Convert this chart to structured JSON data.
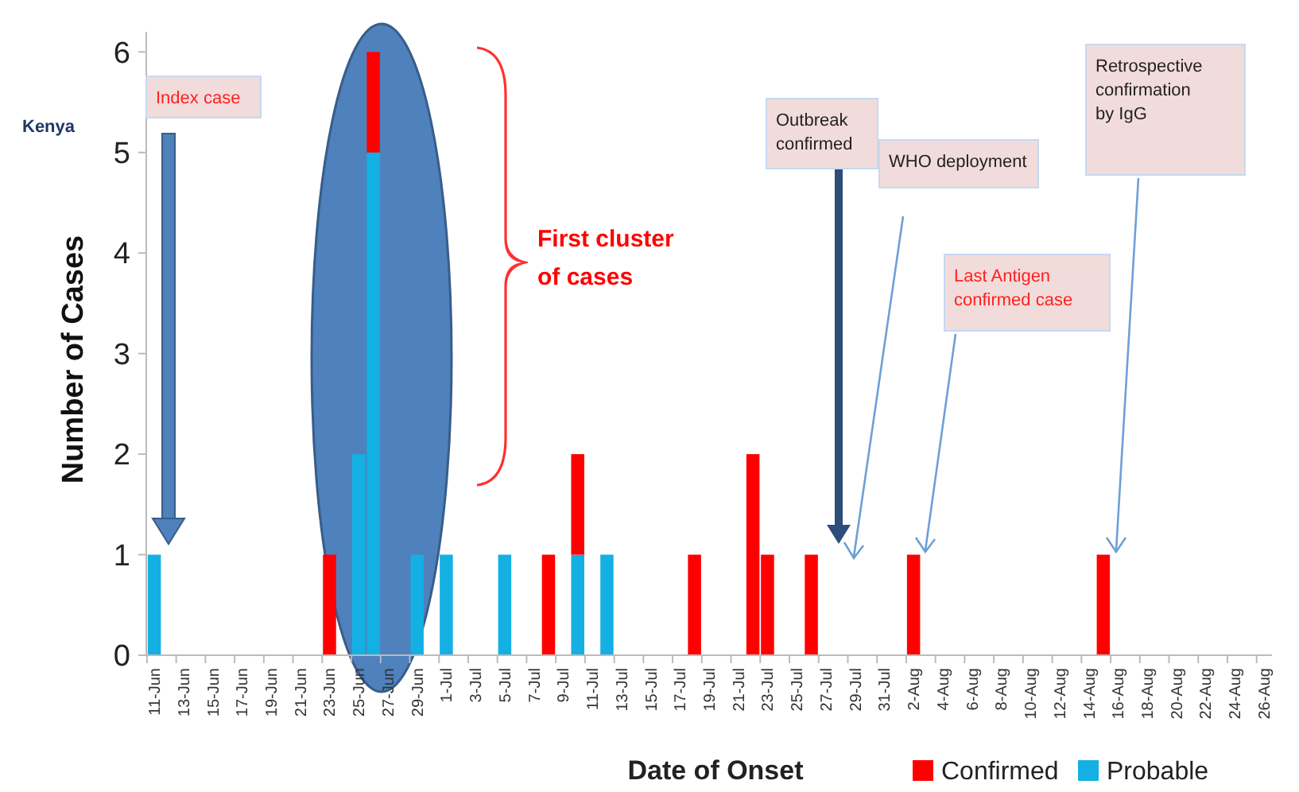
{
  "chart_data": {
    "type": "bar",
    "stacked": true,
    "xlabel": "Date of Onset",
    "ylabel": "Number of Cases",
    "categories": [
      "11-Jun",
      null,
      "13-Jun",
      null,
      "15-Jun",
      null,
      "17-Jun",
      null,
      "19-Jun",
      null,
      "21-Jun",
      null,
      "23-Jun",
      null,
      "25-Jun",
      null,
      "27-Jun",
      null,
      "29-Jun",
      null,
      "1-Jul",
      null,
      "3-Jul",
      null,
      "5-Jul",
      null,
      "7-Jul",
      null,
      "9-Jul",
      null,
      "11-Jul",
      null,
      "13-Jul",
      null,
      "15-Jul",
      null,
      "17-Jul",
      null,
      "19-Jul",
      null,
      "21-Jul",
      null,
      "23-Jul",
      null,
      "25-Jul",
      null,
      "27-Jul",
      null,
      "29-Jul",
      null,
      "31-Jul",
      null,
      "2-Aug",
      null,
      "4-Aug",
      null,
      "6-Aug",
      null,
      "8-Aug",
      null,
      "10-Aug",
      null,
      "12-Aug",
      null,
      "14-Aug",
      null,
      "16-Aug",
      null,
      "18-Aug",
      null,
      "20-Aug",
      null,
      "22-Aug",
      null,
      "24-Aug",
      null,
      "26-Aug"
    ],
    "series": [
      {
        "name": "Probable",
        "color": "#14b0e4",
        "values": [
          1,
          0,
          0,
          0,
          0,
          0,
          0,
          0,
          0,
          0,
          0,
          0,
          0,
          0,
          2,
          5,
          0,
          0,
          1,
          0,
          1,
          0,
          0,
          0,
          1,
          0,
          0,
          0,
          0,
          1,
          0,
          1,
          0,
          0,
          0,
          0,
          0,
          0,
          0,
          0,
          0,
          0,
          0,
          0,
          0,
          0,
          0,
          0,
          0,
          0,
          0,
          0,
          0,
          0,
          0,
          0,
          0,
          0,
          0,
          0,
          0,
          0,
          0,
          0,
          0,
          0,
          0,
          0,
          0,
          0,
          0,
          0,
          0,
          0,
          0,
          0,
          0
        ]
      },
      {
        "name": "Confirmed",
        "color": "#ff0000",
        "values": [
          0,
          0,
          0,
          0,
          0,
          0,
          0,
          0,
          0,
          0,
          0,
          0,
          1,
          0,
          0,
          1,
          0,
          0,
          0,
          0,
          0,
          0,
          0,
          0,
          0,
          0,
          0,
          1,
          0,
          1,
          0,
          0,
          0,
          0,
          0,
          0,
          0,
          1,
          0,
          0,
          0,
          2,
          1,
          0,
          0,
          1,
          0,
          0,
          0,
          0,
          0,
          0,
          1,
          0,
          0,
          0,
          0,
          0,
          0,
          0,
          0,
          0,
          0,
          0,
          0,
          1,
          0,
          0,
          0,
          0,
          0,
          0,
          0,
          0,
          0,
          0,
          0
        ]
      }
    ],
    "ylim": [
      0,
      6.2
    ],
    "yticks": [
      0,
      1,
      2,
      3,
      4,
      5,
      6
    ],
    "grid": false,
    "legend": "bottom right",
    "annotations": [
      "Kenya",
      "Index case",
      "First cluster of cases",
      "Outbreak confirmed",
      "WHO deployment",
      "Last Antigen confirmed case",
      "Retrospective confirmation by IgG"
    ]
  }
}
